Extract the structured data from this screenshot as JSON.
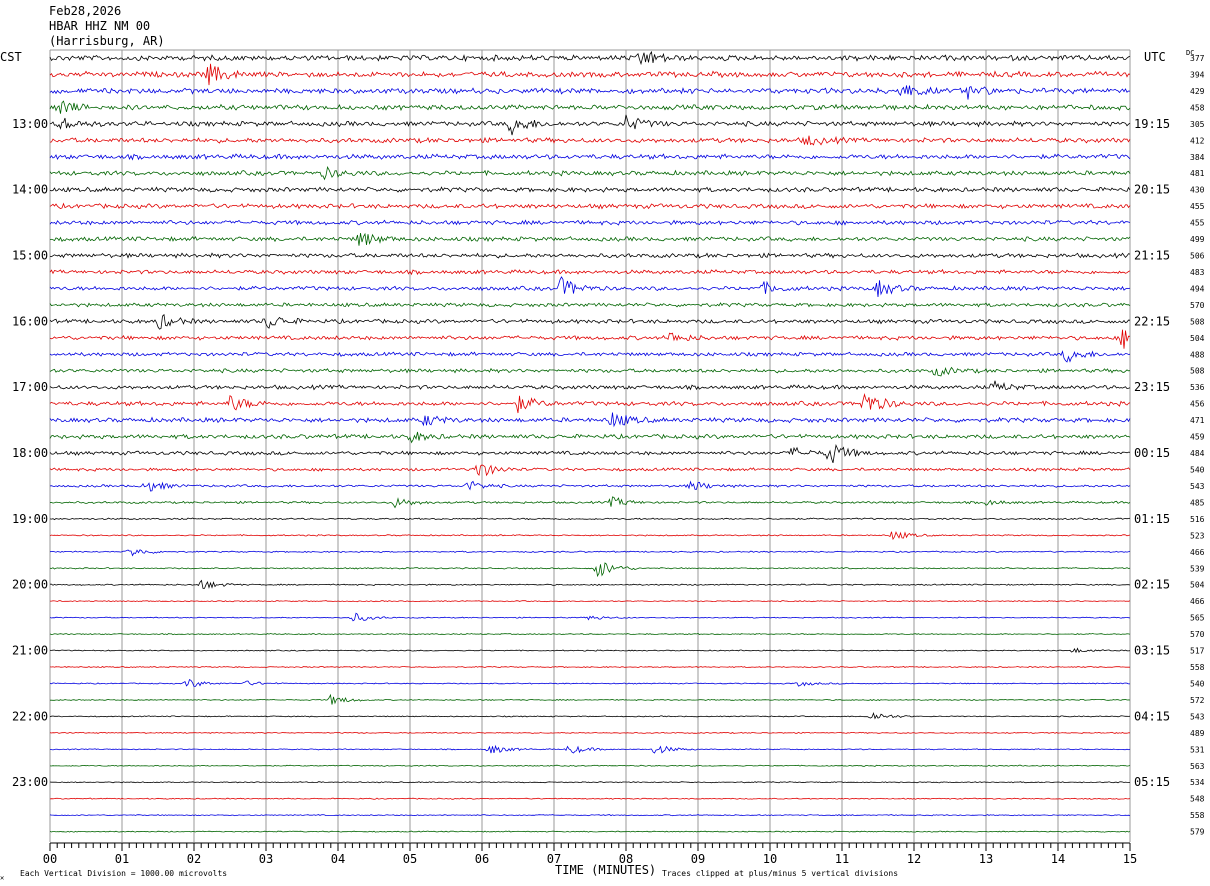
{
  "header": {
    "date": "Feb28,2026",
    "station": "HBAR HHZ NM 00",
    "location": "(Harrisburg, AR)"
  },
  "labels": {
    "left_tz": "CST",
    "right_tz": "UTC",
    "dc": "DC",
    "xlabel": "TIME (MINUTES)",
    "scale_note": "Each Vertical Division = 1000.00 microvolts",
    "clip_note": "Traces clipped at plus/minus 5 vertical divisions"
  },
  "colors": {
    "trace_cycle": [
      "#000000",
      "#e00000",
      "#0000e0",
      "#006400"
    ],
    "grid": "#999999",
    "text": "#000000"
  },
  "chart_data": {
    "type": "line",
    "title": "HBAR HHZ NM 00 (Harrisburg, AR)",
    "xlabel": "TIME (MINUTES)",
    "xlim": [
      0,
      15
    ],
    "x_ticks": [
      "00",
      "01",
      "02",
      "03",
      "04",
      "05",
      "06",
      "07",
      "08",
      "09",
      "10",
      "11",
      "12",
      "13",
      "14",
      "15"
    ],
    "rows": 48,
    "minutes_per_row": 15,
    "left_hour_labels": [
      {
        "row": 4,
        "label": "13:00"
      },
      {
        "row": 8,
        "label": "14:00"
      },
      {
        "row": 12,
        "label": "15:00"
      },
      {
        "row": 16,
        "label": "16:00"
      },
      {
        "row": 20,
        "label": "17:00"
      },
      {
        "row": 24,
        "label": "18:00"
      },
      {
        "row": 28,
        "label": "19:00"
      },
      {
        "row": 32,
        "label": "20:00"
      },
      {
        "row": 36,
        "label": "21:00"
      },
      {
        "row": 40,
        "label": "22:00"
      },
      {
        "row": 44,
        "label": "23:00"
      }
    ],
    "right_hour_labels": [
      {
        "row": 4,
        "label": "19:15"
      },
      {
        "row": 8,
        "label": "20:15"
      },
      {
        "row": 12,
        "label": "21:15"
      },
      {
        "row": 16,
        "label": "22:15"
      },
      {
        "row": 20,
        "label": "23:15"
      },
      {
        "row": 24,
        "label": "00:15"
      },
      {
        "row": 28,
        "label": "01:15"
      },
      {
        "row": 32,
        "label": "02:15"
      },
      {
        "row": 36,
        "label": "03:15"
      },
      {
        "row": 40,
        "label": "04:15"
      },
      {
        "row": 44,
        "label": "05:15"
      }
    ],
    "dc_values": [
      377,
      394,
      429,
      458,
      305,
      412,
      384,
      481,
      430,
      455,
      455,
      499,
      506,
      483,
      494,
      570,
      508,
      504,
      488,
      508,
      536,
      456,
      471,
      459,
      484,
      540,
      543,
      485,
      516,
      523,
      466,
      539,
      504,
      466,
      565,
      570,
      517,
      558,
      540,
      572,
      543,
      489,
      531,
      563,
      534,
      548,
      558,
      579
    ],
    "amplitude": [
      1.0,
      1.0,
      1.0,
      0.95,
      0.9,
      0.9,
      0.9,
      0.85,
      0.85,
      0.85,
      0.8,
      0.8,
      0.8,
      0.75,
      0.75,
      0.7,
      0.75,
      0.75,
      0.7,
      0.7,
      0.75,
      0.8,
      0.85,
      0.8,
      0.7,
      0.55,
      0.45,
      0.4,
      0.3,
      0.25,
      0.25,
      0.25,
      0.25,
      0.2,
      0.2,
      0.2,
      0.2,
      0.2,
      0.2,
      0.2,
      0.2,
      0.2,
      0.2,
      0.2,
      0.2,
      0.2,
      0.2,
      0.2
    ],
    "events": [
      {
        "row": 0,
        "minute": 8.2,
        "size": 4
      },
      {
        "row": 1,
        "minute": 2.2,
        "size": 4
      },
      {
        "row": 2,
        "minute": 11.8,
        "size": 3
      },
      {
        "row": 2,
        "minute": 12.7,
        "size": 3
      },
      {
        "row": 3,
        "minute": 0.1,
        "size": 3
      },
      {
        "row": 4,
        "minute": 0.1,
        "size": 3
      },
      {
        "row": 4,
        "minute": 6.4,
        "size": 4
      },
      {
        "row": 4,
        "minute": 8.0,
        "size": 3
      },
      {
        "row": 5,
        "minute": 10.5,
        "size": 2
      },
      {
        "row": 7,
        "minute": 3.8,
        "size": 2
      },
      {
        "row": 11,
        "minute": 4.3,
        "size": 3
      },
      {
        "row": 14,
        "minute": 7.1,
        "size": 4
      },
      {
        "row": 14,
        "minute": 9.9,
        "size": 2
      },
      {
        "row": 14,
        "minute": 11.5,
        "size": 3
      },
      {
        "row": 16,
        "minute": 1.5,
        "size": 3
      },
      {
        "row": 16,
        "minute": 3.0,
        "size": 3
      },
      {
        "row": 17,
        "minute": 8.6,
        "size": 2
      },
      {
        "row": 17,
        "minute": 14.9,
        "size": 4
      },
      {
        "row": 18,
        "minute": 14.1,
        "size": 3
      },
      {
        "row": 19,
        "minute": 12.3,
        "size": 2
      },
      {
        "row": 20,
        "minute": 13.1,
        "size": 2
      },
      {
        "row": 21,
        "minute": 2.5,
        "size": 3
      },
      {
        "row": 21,
        "minute": 6.5,
        "size": 3
      },
      {
        "row": 21,
        "minute": 11.3,
        "size": 5
      },
      {
        "row": 22,
        "minute": 7.8,
        "size": 3
      },
      {
        "row": 22,
        "minute": 5.2,
        "size": 2
      },
      {
        "row": 23,
        "minute": 5.0,
        "size": 2
      },
      {
        "row": 24,
        "minute": 10.8,
        "size": 5
      },
      {
        "row": 24,
        "minute": 10.3,
        "size": 2
      },
      {
        "row": 25,
        "minute": 5.9,
        "size": 4
      },
      {
        "row": 26,
        "minute": 1.3,
        "size": 3
      },
      {
        "row": 26,
        "minute": 5.8,
        "size": 2
      },
      {
        "row": 26,
        "minute": 8.9,
        "size": 2
      },
      {
        "row": 27,
        "minute": 4.8,
        "size": 2
      },
      {
        "row": 27,
        "minute": 7.8,
        "size": 2
      },
      {
        "row": 27,
        "minute": 13.0,
        "size": 1
      },
      {
        "row": 29,
        "minute": 11.7,
        "size": 2
      },
      {
        "row": 30,
        "minute": 1.1,
        "size": 2
      },
      {
        "row": 31,
        "minute": 7.6,
        "size": 4
      },
      {
        "row": 32,
        "minute": 2.1,
        "size": 2
      },
      {
        "row": 34,
        "minute": 4.2,
        "size": 2
      },
      {
        "row": 34,
        "minute": 7.5,
        "size": 1
      },
      {
        "row": 36,
        "minute": 14.2,
        "size": 1
      },
      {
        "row": 38,
        "minute": 1.9,
        "size": 2
      },
      {
        "row": 38,
        "minute": 2.7,
        "size": 1
      },
      {
        "row": 38,
        "minute": 10.4,
        "size": 1
      },
      {
        "row": 39,
        "minute": 3.9,
        "size": 2
      },
      {
        "row": 40,
        "minute": 11.4,
        "size": 2
      },
      {
        "row": 42,
        "minute": 6.1,
        "size": 2
      },
      {
        "row": 42,
        "minute": 7.2,
        "size": 2
      },
      {
        "row": 42,
        "minute": 8.4,
        "size": 2
      }
    ]
  }
}
